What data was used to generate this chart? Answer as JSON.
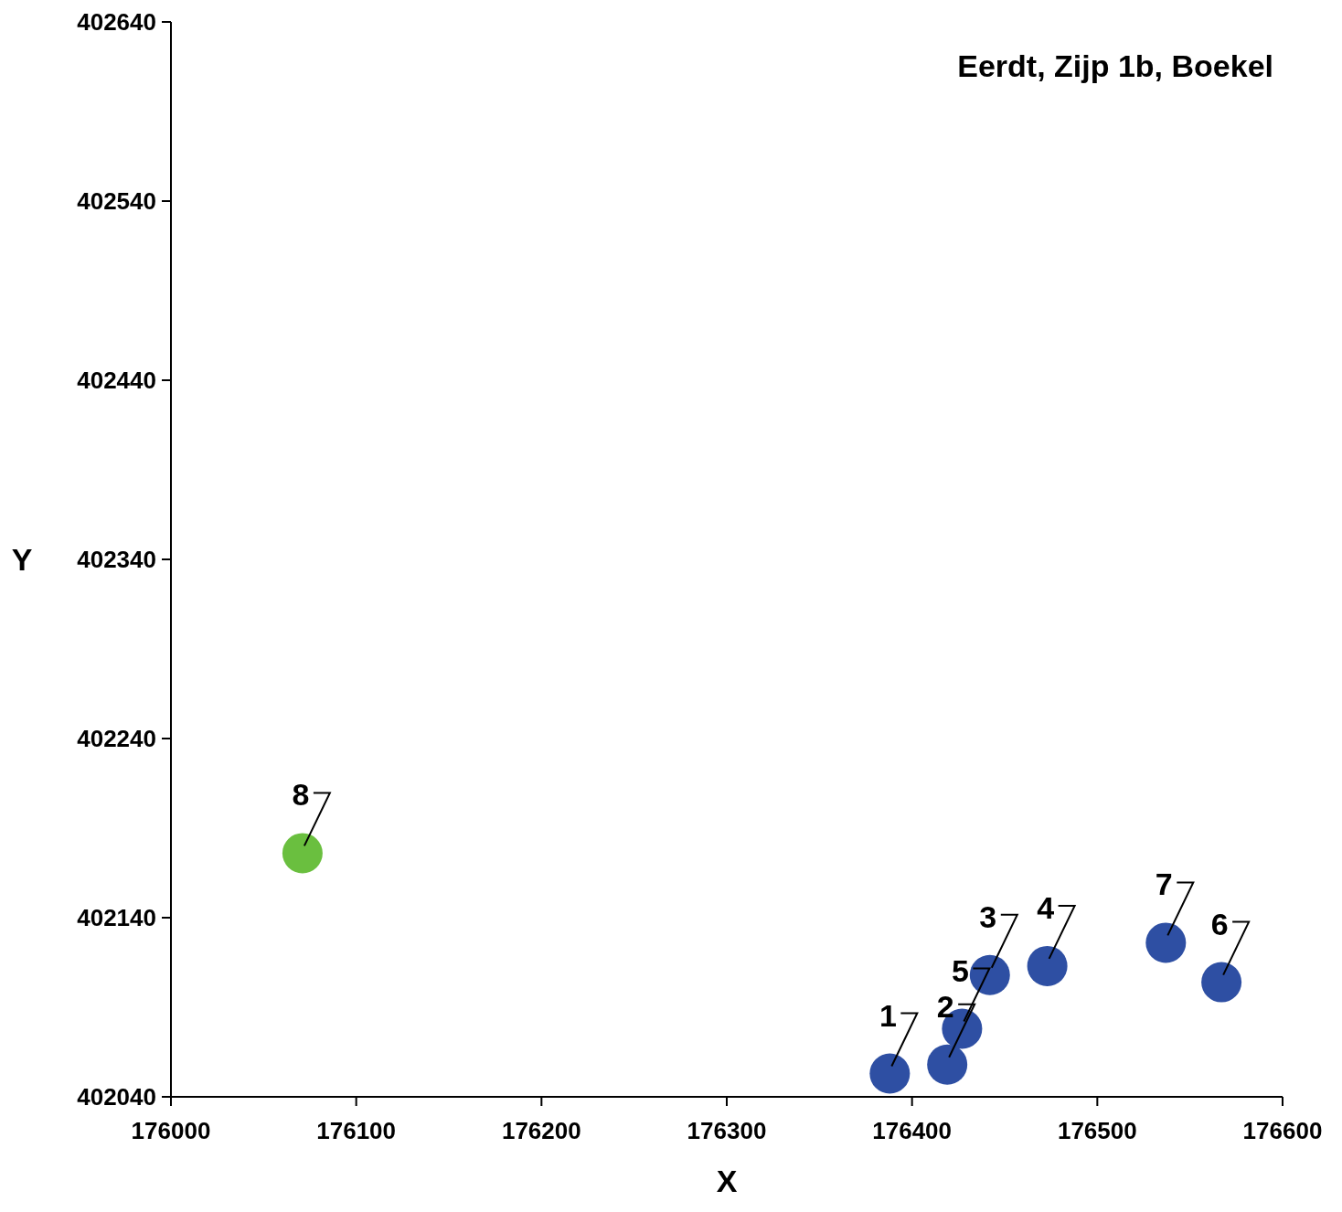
{
  "chart_data": {
    "type": "scatter",
    "title": "Eerdt, Zijp 1b, Boekel",
    "xlabel": "X",
    "ylabel": "Y",
    "xlim": [
      176000,
      176600
    ],
    "xticks": [
      176000,
      176100,
      176200,
      176300,
      176400,
      176500,
      176600
    ],
    "ylim": [
      402040,
      402640
    ],
    "yticks": [
      402040,
      402140,
      402240,
      402340,
      402440,
      402540,
      402640
    ],
    "grid": false,
    "marker": "circle",
    "series": [
      {
        "color": "#2e4fa3",
        "x": [
          176388,
          176419,
          176442,
          176473,
          176427,
          176567,
          176537
        ],
        "values": [
          402053,
          402058,
          402108,
          402113,
          402078,
          402104,
          402126
        ]
      },
      {
        "color": "#6abf3f",
        "x": [
          176071
        ],
        "values": [
          402176
        ]
      }
    ],
    "annotations": [
      {
        "text": "1",
        "x": 176388,
        "y": 402053
      },
      {
        "text": "2",
        "x": 176419,
        "y": 402058
      },
      {
        "text": "3",
        "x": 176442,
        "y": 402108
      },
      {
        "text": "4",
        "x": 176473,
        "y": 402113
      },
      {
        "text": "5",
        "x": 176427,
        "y": 402078
      },
      {
        "text": "6",
        "x": 176567,
        "y": 402104
      },
      {
        "text": "7",
        "x": 176537,
        "y": 402126
      },
      {
        "text": "8",
        "x": 176071,
        "y": 402176
      }
    ]
  }
}
